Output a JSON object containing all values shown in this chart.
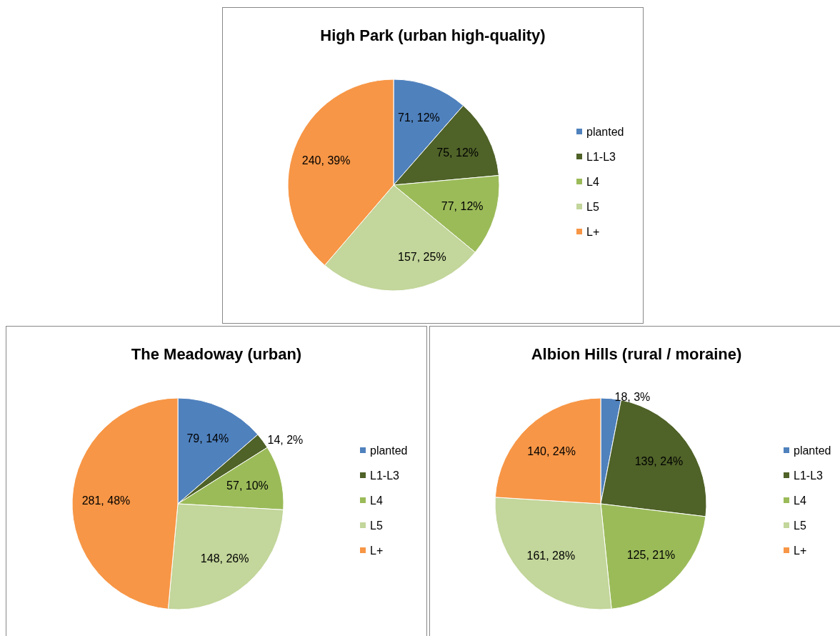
{
  "chart_data": [
    {
      "type": "pie",
      "title": "High Park (urban high-quality)",
      "categories": [
        "planted",
        "L1-L3",
        "L4",
        "L5",
        "L+"
      ],
      "values": [
        71,
        75,
        77,
        157,
        240
      ],
      "value_labels": [
        "71, 12%",
        "75, 12%",
        "77, 12%",
        "157, 25%",
        "240, 39%"
      ],
      "colors": [
        "#4f81bd",
        "#4f6228",
        "#9bbb59",
        "#c3d69b",
        "#f79646"
      ],
      "legend": "right"
    },
    {
      "type": "pie",
      "title": "The Meadoway (urban)",
      "categories": [
        "planted",
        "L1-L3",
        "L4",
        "L5",
        "L+"
      ],
      "values": [
        79,
        14,
        57,
        148,
        281
      ],
      "value_labels": [
        "79, 14%",
        "14, 2%",
        "57, 10%",
        "148, 26%",
        "281, 48%"
      ],
      "colors": [
        "#4f81bd",
        "#4f6228",
        "#9bbb59",
        "#c3d69b",
        "#f79646"
      ],
      "legend": "right"
    },
    {
      "type": "pie",
      "title": "Albion Hills (rural / moraine)",
      "categories": [
        "planted",
        "L1-L3",
        "L4",
        "L5",
        "L+"
      ],
      "values": [
        18,
        139,
        125,
        161,
        140
      ],
      "value_labels": [
        "18, 3%",
        "139, 24%",
        "125, 21%",
        "161, 28%",
        "140, 24%"
      ],
      "colors": [
        "#4f81bd",
        "#4f6228",
        "#9bbb59",
        "#c3d69b",
        "#f79646"
      ],
      "legend": "right"
    }
  ]
}
